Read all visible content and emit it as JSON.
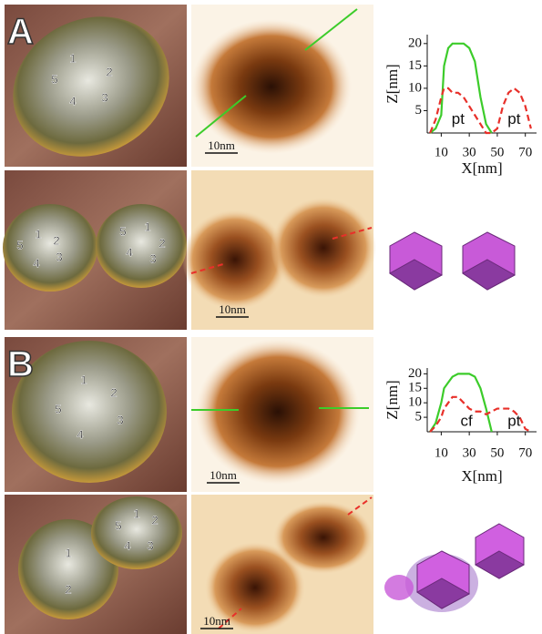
{
  "panels": [
    {
      "letter": "A",
      "scale_bars": [
        "10nm",
        "10nm"
      ],
      "particle_labels": [
        [
          "1",
          "2",
          "3",
          "4",
          "5"
        ],
        [
          "1",
          "2",
          "3",
          "4",
          "5",
          "5",
          "1",
          "2",
          "3",
          "4"
        ]
      ]
    },
    {
      "letter": "B",
      "scale_bars": [
        "10nm",
        "10nm"
      ],
      "particle_labels": [
        [
          "1",
          "2",
          "3",
          "4",
          "5"
        ],
        [
          "1",
          "2",
          "5",
          "3",
          "4",
          "1",
          "2"
        ]
      ]
    }
  ],
  "chart_data": [
    {
      "type": "line",
      "xlabel": "X[nm]",
      "ylabel": "Z[nm]",
      "x": [
        2,
        6,
        10,
        12,
        15,
        18,
        22,
        26,
        30,
        34,
        38,
        42,
        46,
        50,
        54,
        58,
        62,
        66,
        70,
        74
      ],
      "series": [
        {
          "color": "#3ccc2a",
          "dash": false,
          "values": [
            0,
            1,
            4,
            15,
            19,
            20,
            20,
            20,
            19,
            16,
            8,
            2,
            0,
            null,
            null,
            null,
            null,
            null,
            null,
            null
          ]
        },
        {
          "color": "#e8302a",
          "dash": true,
          "values": [
            0,
            3,
            8,
            10,
            10,
            9,
            9,
            8,
            6,
            4,
            2,
            0,
            0,
            1,
            6,
            9,
            10,
            9,
            6,
            1
          ]
        }
      ],
      "annotations": [
        "pt",
        "pt"
      ],
      "xlim": [
        0,
        78
      ],
      "ylim": [
        0,
        22
      ],
      "xticks": [
        10,
        30,
        50,
        70
      ],
      "yticks": [
        5,
        10,
        15,
        20
      ],
      "grid": false
    },
    {
      "type": "line",
      "xlabel": "X[nm]",
      "ylabel": "Z[nm]",
      "x": [
        2,
        6,
        10,
        12,
        15,
        18,
        22,
        26,
        30,
        34,
        38,
        42,
        46,
        50,
        54,
        58,
        62,
        66,
        70,
        74
      ],
      "series": [
        {
          "color": "#3ccc2a",
          "dash": false,
          "values": [
            0,
            3,
            10,
            15,
            17,
            19,
            20,
            20,
            20,
            19,
            15,
            8,
            0,
            null,
            null,
            null,
            null,
            null,
            null,
            null
          ]
        },
        {
          "color": "#e8302a",
          "dash": true,
          "values": [
            0,
            2,
            5,
            8,
            10,
            12,
            12,
            10,
            8,
            7,
            7,
            6,
            7,
            8,
            8,
            8,
            7,
            5,
            1,
            0
          ]
        }
      ],
      "annotations": [
        "cf",
        "pt"
      ],
      "xlim": [
        0,
        78
      ],
      "ylim": [
        0,
        22
      ],
      "xticks": [
        10,
        30,
        50,
        70
      ],
      "yticks": [
        5,
        10,
        15,
        20
      ],
      "grid": false
    }
  ]
}
